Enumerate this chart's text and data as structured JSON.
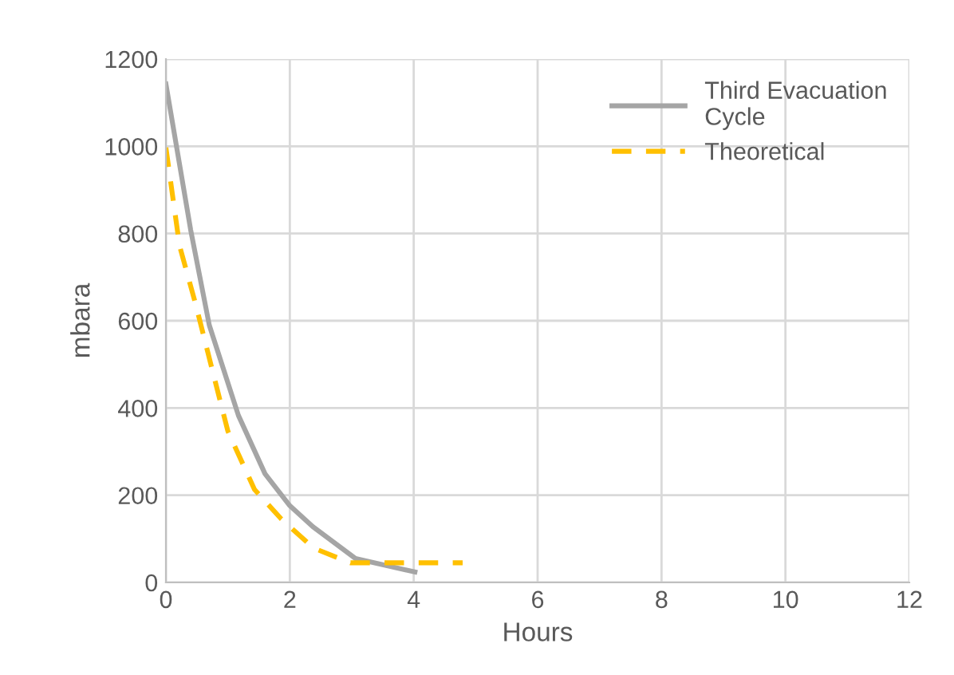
{
  "chart_data": {
    "type": "line",
    "xlabel": "Hours",
    "ylabel": "mbara",
    "xlim": [
      0,
      12
    ],
    "ylim": [
      0,
      1200
    ],
    "xticks": [
      0,
      2,
      4,
      6,
      8,
      10,
      12
    ],
    "yticks": [
      0,
      200,
      400,
      600,
      800,
      1000,
      1200
    ],
    "grid": true,
    "legend": "top right",
    "marker": "none",
    "series": [
      {
        "name": "Third Evacuation\nCycle",
        "color": "#a5a5a5",
        "line_style": "solid",
        "x": [
          0,
          0.4,
          0.7,
          1.17,
          1.6,
          2,
          2.37,
          3.06,
          4.02
        ],
        "values": [
          1143,
          808,
          590,
          383,
          249,
          176,
          128,
          55,
          24
        ]
      },
      {
        "name": "Theoretical",
        "color": "#ffc000",
        "line_style": "dashed",
        "x": [
          0,
          0.22,
          0.48,
          0.74,
          1.0,
          1.43,
          1.86,
          2.38,
          2.98,
          4.79
        ],
        "values": [
          997,
          772,
          638,
          492,
          347,
          213,
          146,
          79,
          45,
          45
        ]
      }
    ]
  }
}
